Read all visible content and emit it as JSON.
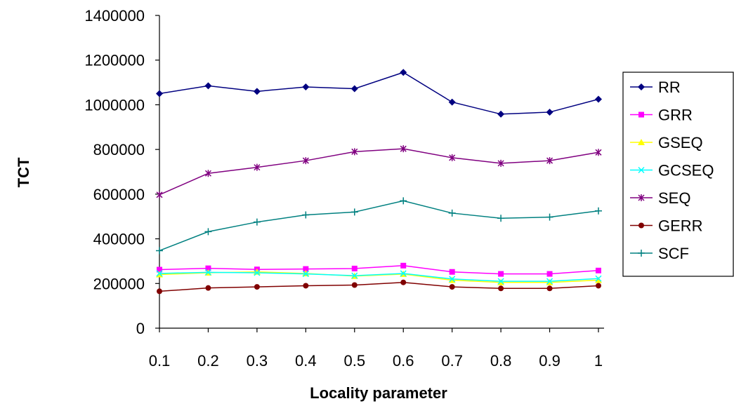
{
  "chart_data": {
    "type": "line",
    "title": "",
    "xlabel": "Locality parameter",
    "ylabel": "TCT",
    "x": [
      "0.1",
      "0.2",
      "0.3",
      "0.4",
      "0.5",
      "0.6",
      "0.7",
      "0.8",
      "0.9",
      "1"
    ],
    "ylim": [
      0,
      1400000
    ],
    "yticks": [
      "0",
      "200000",
      "400000",
      "600000",
      "800000",
      "1000000",
      "1200000",
      "1400000"
    ],
    "grid": false,
    "legend_position": "right",
    "series": [
      {
        "name": "RR",
        "color": "#000080",
        "marker": "diamond",
        "values": [
          1050000,
          1085000,
          1060000,
          1080000,
          1072000,
          1145000,
          1012000,
          958000,
          967000,
          1025000
        ]
      },
      {
        "name": "GRR",
        "color": "#ff00ff",
        "marker": "square",
        "values": [
          262000,
          268000,
          263000,
          265000,
          267000,
          280000,
          252000,
          243000,
          243000,
          258000
        ]
      },
      {
        "name": "GSEQ",
        "color": "#ffff00",
        "marker": "triangle",
        "values": [
          240000,
          248000,
          252000,
          245000,
          233000,
          242000,
          215000,
          205000,
          205000,
          215000
        ]
      },
      {
        "name": "GCSEQ",
        "color": "#00ffff",
        "marker": "x",
        "values": [
          245000,
          250000,
          248000,
          243000,
          235000,
          245000,
          220000,
          210000,
          210000,
          222000
        ]
      },
      {
        "name": "SEQ",
        "color": "#800080",
        "marker": "asterisk",
        "values": [
          597000,
          693000,
          720000,
          750000,
          790000,
          803000,
          763000,
          738000,
          750000,
          787000
        ]
      },
      {
        "name": "GERR",
        "color": "#800000",
        "marker": "circle",
        "values": [
          165000,
          180000,
          185000,
          190000,
          193000,
          205000,
          185000,
          178000,
          178000,
          190000
        ]
      },
      {
        "name": "SCF",
        "color": "#008080",
        "marker": "plus",
        "values": [
          347000,
          432000,
          475000,
          507000,
          520000,
          570000,
          515000,
          492000,
          497000,
          525000
        ]
      }
    ]
  }
}
